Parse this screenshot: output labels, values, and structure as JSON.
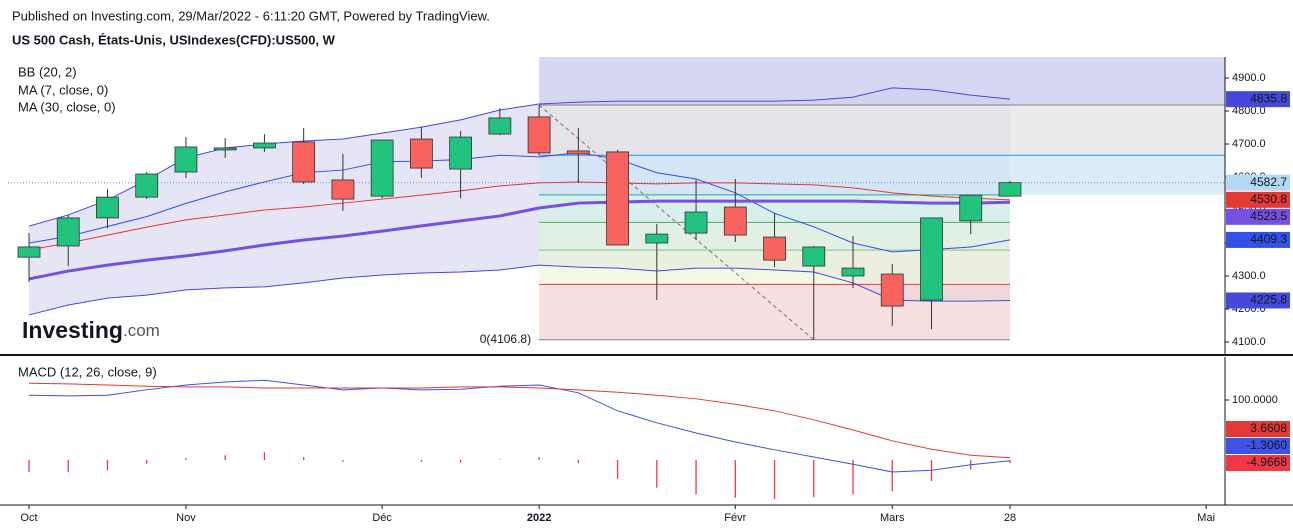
{
  "header": {
    "published": "Published on Investing.com, 29/Mar/2022 - 6:11:20 GMT, Powered by TradingView.",
    "symbol": "US 500 Cash, États-Unis, USIndexes(CFD):US500, W"
  },
  "logo": {
    "brand": "Investing",
    "suffix": ".com"
  },
  "chart_data": [
    {
      "type": "candlestick",
      "xlim": [
        -0.535,
        30.48
      ],
      "xticks": [
        {
          "value": 0,
          "label": "Oct"
        },
        {
          "value": 4,
          "label": "Nov"
        },
        {
          "value": 9,
          "label": "Déc"
        },
        {
          "value": 13,
          "label": "2022"
        },
        {
          "value": 18,
          "label": "Févr"
        },
        {
          "value": 22,
          "label": "Mars"
        },
        {
          "value": 25,
          "label": "28"
        },
        {
          "value": 30,
          "label": "Mai"
        }
      ],
      "ylim": [
        4060.6,
        4963.6
      ],
      "yticks": [
        {
          "value": 4100,
          "label": "4100.0"
        },
        {
          "value": 4200,
          "label": "4200.0"
        },
        {
          "value": 4300,
          "label": "4300.0"
        },
        {
          "value": 4400,
          "label": "4400.0"
        },
        {
          "value": 4500,
          "label": "4500.0"
        },
        {
          "value": 4600,
          "label": "4600.0"
        },
        {
          "value": 4700,
          "label": "4700.0"
        },
        {
          "value": 4800,
          "label": "4800.0"
        },
        {
          "value": 4900,
          "label": "4900.0"
        }
      ],
      "up_color": "#22c37e",
      "down_color": "#f8635f",
      "last_price_color": "#b3d9f7",
      "ohlc": {
        "open": [
          4357,
          4391,
          4476,
          4539,
          4615,
          4682,
          4688,
          4706,
          4591,
          4542,
          4715,
          4624,
          4730,
          4782,
          4679,
          4676,
          4400,
          4430,
          4509,
          4418,
          4330,
          4300,
          4306,
          4227,
          4467,
          4542
        ],
        "high": [
          4430,
          4485,
          4564,
          4615,
          4721,
          4718,
          4730,
          4748,
          4670,
          4712,
          4752,
          4739,
          4809,
          4818,
          4748,
          4682,
          4458,
          4591,
          4594,
          4491,
          4391,
          4421,
          4336,
          4476,
          4545,
          4588
        ],
        "low": [
          4282,
          4330,
          4445,
          4533,
          4597,
          4658,
          4676,
          4579,
          4497,
          4536,
          4597,
          4536,
          4727,
          4667,
          4582,
          4394,
          4227,
          4409,
          4403,
          4327,
          4106.8,
          4264,
          4148,
          4139,
          4427,
          4542
        ],
        "close": [
          4388,
          4476,
          4539,
          4609,
          4691,
          4688,
          4703,
          4585,
          4533,
          4712,
          4627,
          4721,
          4779,
          4673,
          4670,
          4394,
          4427,
          4494,
          4424,
          4348,
          4388,
          4324,
          4209,
          4476,
          4545,
          4582.7
        ]
      },
      "bollinger": {
        "name": "BB (20, 2)",
        "band_color": "#4449d8",
        "basis_color": "#e53935",
        "fill": "#dcdcf2",
        "upper": [
          4451,
          4485,
          4530,
          4591,
          4658,
          4688,
          4700,
          4709,
          4715,
          4733,
          4751,
          4773,
          4803,
          4821,
          4827,
          4830,
          4830,
          4830,
          4830,
          4830,
          4833,
          4842,
          4870,
          4864,
          4848,
          4835.8
        ],
        "basis": [
          4379,
          4400,
          4424,
          4448,
          4470,
          4485,
          4500,
          4509,
          4521,
          4533,
          4545,
          4558,
          4573,
          4582,
          4585,
          4582,
          4579,
          4582,
          4582,
          4579,
          4576,
          4567,
          4552,
          4542,
          4536,
          4530.8
        ],
        "lower": [
          4182,
          4212,
          4233,
          4242,
          4258,
          4264,
          4267,
          4279,
          4294,
          4303,
          4309,
          4312,
          4318,
          4333,
          4327,
          4324,
          4315,
          4324,
          4324,
          4318,
          4312,
          4279,
          4227,
          4224,
          4224,
          4225.8
        ]
      },
      "series": [
        {
          "name": "MA (7, close, 0)",
          "color": "#3450e6",
          "width": 1,
          "values": [
            4400,
            4420,
            4450,
            4480,
            4520,
            4555,
            4585,
            4613,
            4621,
            4646,
            4648,
            4653,
            4666,
            4661,
            4674,
            4654,
            4613,
            4594,
            4552,
            4490,
            4449,
            4400,
            4373,
            4380,
            4388,
            4409.3
          ]
        },
        {
          "name": "MA (30, close, 0)",
          "color": "#7650e0",
          "width": 3,
          "values": [
            4291,
            4315,
            4333,
            4348,
            4361,
            4376,
            4394,
            4409,
            4421,
            4436,
            4452,
            4467,
            4482,
            4506,
            4521,
            4524,
            4527,
            4527,
            4527,
            4527,
            4527,
            4527,
            4524,
            4521,
            4521,
            4523.5
          ]
        }
      ],
      "fibonacci": {
        "label": "0(4106.8)",
        "x_range": [
          13,
          25
        ],
        "levels": [
          4818,
          4665.8,
          4546,
          4462.4,
          4378.5,
          4274.6,
          4106.8
        ],
        "line_colors": [
          "#808080",
          "#2196f3",
          "#26a69a",
          "#4caf50",
          "#81c784",
          "#e53935",
          "#808080"
        ],
        "zone_colors": [
          "#e3e3e3",
          "#cfe6f5",
          "#d3f3e8",
          "#e0f3de",
          "#eef3d8",
          "#f3d3d3"
        ],
        "top_color": "#cfd0f0",
        "trend_line": {
          "x": [
            13,
            20
          ],
          "y": [
            4818,
            4106.8
          ]
        }
      }
    },
    {
      "type": "macd",
      "title": "MACD (12, 26, close, 9)",
      "xlim": [
        -0.535,
        30.48
      ],
      "ylim": [
        -75,
        171.7
      ],
      "yticks": [
        {
          "value": 100,
          "label": "100.0000"
        }
      ],
      "series": [
        {
          "name": "macd",
          "color": "#3f51e6",
          "values": [
            108,
            107,
            108,
            117,
            125,
            130,
            133,
            125,
            117,
            120,
            117,
            118,
            123,
            125,
            112,
            82,
            62,
            45,
            30,
            17,
            5,
            -7,
            -20,
            -17,
            -8,
            -1.306
          ],
          "last_label": "-1.3060"
        },
        {
          "name": "signal",
          "color": "#e53935",
          "values": [
            128,
            127,
            125,
            123,
            122,
            122,
            120,
            120,
            120,
            120,
            120,
            122,
            122,
            120,
            117,
            113,
            108,
            102,
            93,
            82,
            67,
            50,
            32,
            18,
            8,
            3.6608
          ]
        }
      ],
      "histogram": {
        "color": "#f23645",
        "values": [
          -20,
          -20,
          -17,
          -6,
          3,
          8,
          13,
          5,
          -3,
          0,
          -3,
          -4,
          1,
          5,
          -5,
          -31,
          -46,
          -57,
          -63,
          -65,
          -62,
          -57,
          -52,
          -35,
          -16,
          -4.9668
        ]
      }
    }
  ]
}
